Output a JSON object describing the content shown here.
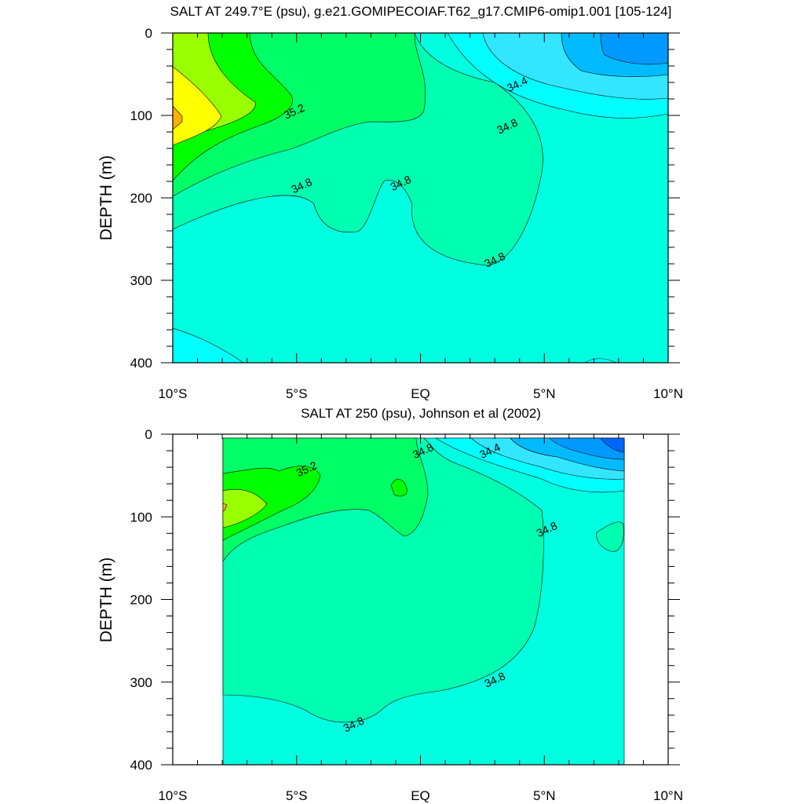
{
  "chart_data": [
    {
      "type": "contour",
      "title": "SALT AT 249.7°E (psu), g.e21.GOMIPECOIAF.T62_g17.CMIP6-omip1.001 [105-124]",
      "ylabel": "DEPTH (m)",
      "xlabel": "",
      "x_ticks": [
        "10°S",
        "5°S",
        "EQ",
        "5°N",
        "10°N"
      ],
      "x_tick_values": [
        -10,
        -5,
        0,
        5,
        10
      ],
      "y_ticks": [
        "0",
        "100",
        "200",
        "300",
        "400"
      ],
      "y_tick_values": [
        0,
        100,
        200,
        300,
        400
      ],
      "xlim": [
        -10,
        10
      ],
      "ylim": [
        400,
        0
      ],
      "y_reversed": true,
      "contour_labels": [
        {
          "text": "35.2",
          "x": -5.1,
          "y": 95
        },
        {
          "text": "34.4",
          "x": 3.9,
          "y": 62
        },
        {
          "text": "34.8",
          "x": 3.5,
          "y": 113
        },
        {
          "text": "34.8",
          "x": -4.8,
          "y": 185
        },
        {
          "text": "34.8",
          "x": -0.8,
          "y": 182
        },
        {
          "text": "34.8",
          "x": 3.0,
          "y": 275
        }
      ],
      "salinity_levels": {
        "34.0": "#0099FF",
        "34.2": "#00BBFF",
        "34.4": "#33E6FF",
        "34.6": "#00FFFF",
        "34.8": "#00FFE0",
        "35.0": "#00FFB0",
        "35.2": "#00FF66",
        "35.4": "#00FF00",
        "35.6": "#99FF00",
        "35.8": "#FFFF00",
        "36.0": "#FFB000"
      }
    },
    {
      "type": "contour",
      "title": "SALT AT 250 (psu), Johnson et al (2002)",
      "ylabel": "DEPTH (m)",
      "xlabel": "",
      "x_ticks": [
        "10°S",
        "5°S",
        "EQ",
        "5°N",
        "10°N"
      ],
      "x_tick_values": [
        -10,
        -5,
        0,
        5,
        10
      ],
      "y_ticks": [
        "0",
        "100",
        "200",
        "300",
        "400"
      ],
      "y_tick_values": [
        0,
        100,
        200,
        300,
        400
      ],
      "xlim": [
        -10,
        10
      ],
      "ylim": [
        400,
        0
      ],
      "y_reversed": true,
      "data_x_range": [
        -8,
        8.2
      ],
      "contour_labels": [
        {
          "text": "34.8",
          "x": 0.1,
          "y": 20
        },
        {
          "text": "34.4",
          "x": 2.8,
          "y": 20
        },
        {
          "text": "35.2",
          "x": -4.6,
          "y": 42
        },
        {
          "text": "34.8",
          "x": 5.1,
          "y": 115
        },
        {
          "text": "34.8",
          "x": 3.0,
          "y": 297
        },
        {
          "text": "34.8",
          "x": -2.7,
          "y": 351
        }
      ],
      "salinity_levels": {
        "33.8": "#0066FF",
        "34.0": "#0099FF",
        "34.2": "#00BBFF",
        "34.4": "#33E6FF",
        "34.6": "#00FFFF",
        "34.8": "#00FFE0",
        "35.0": "#00FFB0",
        "35.2": "#00FF66",
        "35.4": "#00FF00",
        "35.6": "#99FF00",
        "35.8": "#FFB000"
      }
    }
  ]
}
